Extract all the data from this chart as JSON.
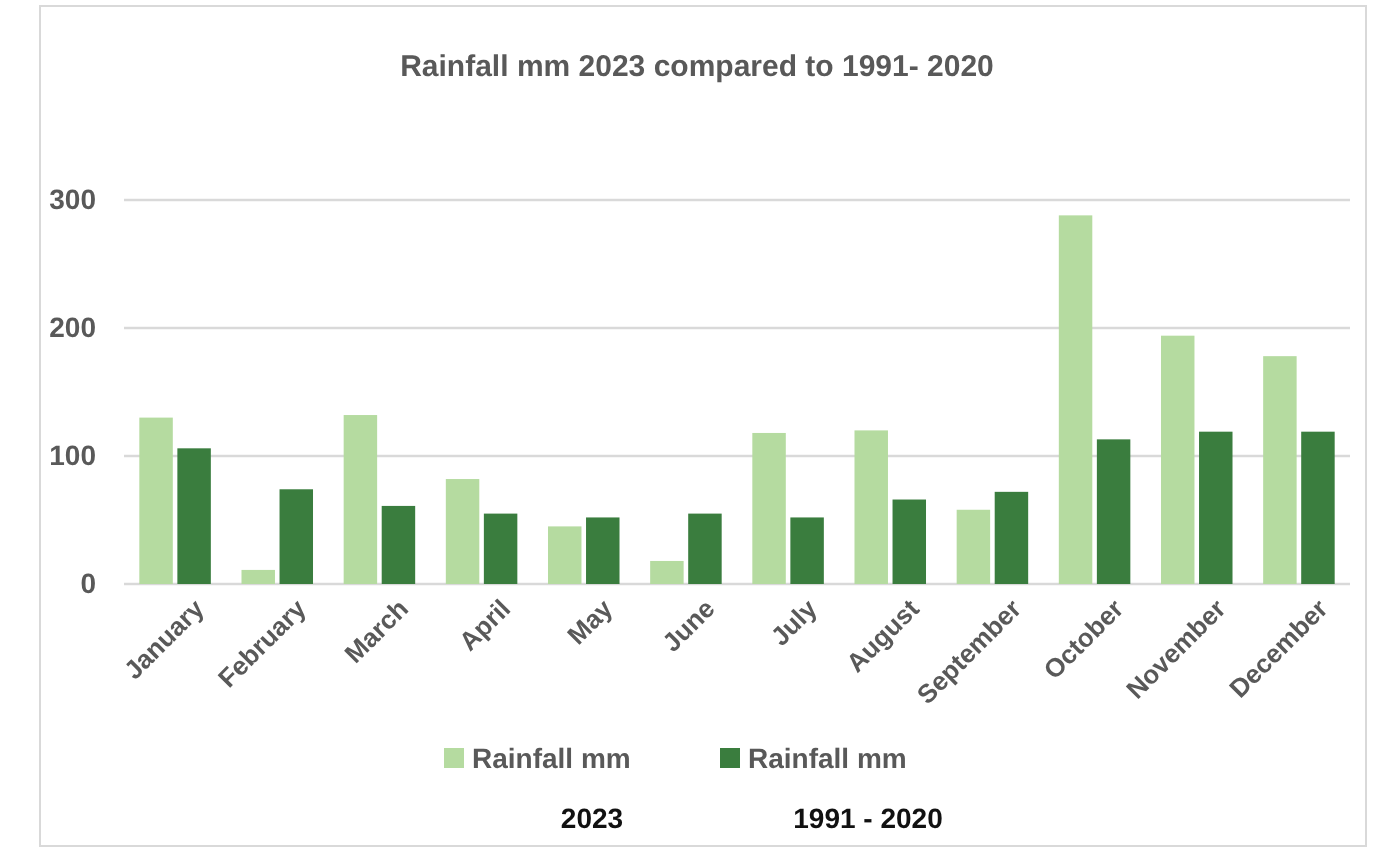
{
  "chart_data": {
    "type": "bar",
    "title": "Rainfall mm 2023 compared to 1991- 2020",
    "categories": [
      "January",
      "February",
      "March",
      "April",
      "May",
      "June",
      "July",
      "August",
      "September",
      "October",
      "November",
      "December"
    ],
    "series": [
      {
        "name": "Rainfall mm 2023",
        "color": "#b5dba0",
        "values": [
          130,
          11,
          132,
          82,
          45,
          18,
          118,
          120,
          58,
          288,
          194,
          178
        ]
      },
      {
        "name": "Rainfall mm 1991 - 2020",
        "color": "#3a7d3e",
        "values": [
          106,
          74,
          61,
          55,
          52,
          55,
          52,
          66,
          72,
          113,
          119,
          119
        ]
      }
    ],
    "ylim": [
      0,
      300
    ],
    "yticks": [
      0,
      100,
      200,
      300
    ],
    "grid": "y",
    "legend": "bottom"
  }
}
